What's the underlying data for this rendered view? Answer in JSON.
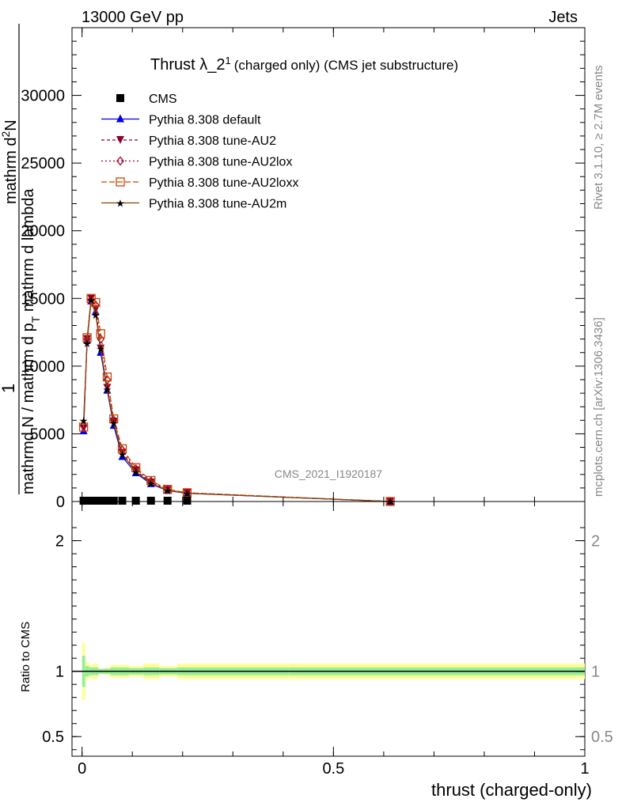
{
  "header": {
    "left": "13000 GeV pp",
    "right": "Jets"
  },
  "side_text": {
    "rivet": "Rivet 3.1.10, ≥ 2.7M events",
    "mcplots": "mcplots.cern.ch [arXiv:1306.3436]"
  },
  "watermark": "CMS_2021_I1920187",
  "title": {
    "main": "Thrust λ_2",
    "sup": "1",
    "rest": "(charged only) (CMS jet substructure)"
  },
  "ylabel": {
    "one": "1",
    "line1": "mathrm dN / mathrm d p_T mathrm d lambda",
    "line2": "mathrm d",
    "sup": "2",
    "line3": "N",
    "numer": "mathrm d",
    "denom": "mathrm N / mathrm d p"
  },
  "ratio_ylabel": "Ratio to CMS",
  "xlabel": "thrust (charged-only)",
  "legend": [
    {
      "label": "CMS",
      "color": "#000000",
      "marker": "square",
      "dash": "none"
    },
    {
      "label": "Pythia 8.308 default",
      "color": "#0000dd",
      "marker": "triangle",
      "dash": "none"
    },
    {
      "label": "Pythia 8.308 tune-AU2",
      "color": "#8b0033",
      "marker": "triangle-down",
      "dash": "4,3"
    },
    {
      "label": "Pythia 8.308 tune-AU2lox",
      "color": "#aa0022",
      "marker": "diamond",
      "dash": "2,3"
    },
    {
      "label": "Pythia 8.308 tune-AU2loxx",
      "color": "#cc4400",
      "marker": "open-square",
      "dash": "7,3"
    },
    {
      "label": "Pythia 8.308 tune-AU2m",
      "color": "#8b4500",
      "marker": "star",
      "dash": "none"
    }
  ],
  "chart_data": {
    "type": "line",
    "xlabel": "thrust (charged-only)",
    "xlim": [
      -0.02,
      1.0
    ],
    "ylim": [
      0,
      35000
    ],
    "ratio_ylim": [
      0.35,
      2.3
    ],
    "x_ticks": [
      0,
      0.5,
      1
    ],
    "x_tick_labels": [
      "0",
      "0.5",
      "1"
    ],
    "y_ticks": [
      0,
      5000,
      10000,
      15000,
      20000,
      25000,
      30000
    ],
    "y_tick_labels": [
      "0",
      "5000",
      "10000",
      "15000",
      "20000",
      "25000",
      "30000"
    ],
    "ratio_ticks": [
      0.5,
      1,
      2
    ],
    "ratio_tick_labels": [
      "0.5",
      "1",
      "2"
    ],
    "cms_x": [
      0.003,
      0.01,
      0.018,
      0.027,
      0.037,
      0.05,
      0.063,
      0.08,
      0.107,
      0.137,
      0.17,
      0.209
    ],
    "series": [
      {
        "name": "Pythia 8.308 default",
        "x": [
          0.003,
          0.01,
          0.018,
          0.027,
          0.037,
          0.05,
          0.063,
          0.08,
          0.107,
          0.137,
          0.17,
          0.209,
          0.613
        ],
        "values": [
          5200,
          11900,
          14800,
          14000,
          11000,
          8200,
          5600,
          3300,
          2100,
          1300,
          800,
          600,
          0
        ]
      },
      {
        "name": "Pythia 8.308 tune-AU2",
        "x": [
          0.003,
          0.01,
          0.018,
          0.027,
          0.037,
          0.05,
          0.063,
          0.08,
          0.107,
          0.137,
          0.17,
          0.209,
          0.613
        ],
        "values": [
          5400,
          12000,
          15000,
          14200,
          11300,
          8400,
          5900,
          3600,
          2300,
          1400,
          850,
          620,
          0
        ]
      },
      {
        "name": "Pythia 8.308 tune-AU2lox",
        "x": [
          0.003,
          0.01,
          0.018,
          0.027,
          0.037,
          0.05,
          0.063,
          0.08,
          0.107,
          0.137,
          0.17,
          0.209,
          0.613
        ],
        "values": [
          5600,
          12000,
          14900,
          14500,
          12000,
          9000,
          6000,
          3800,
          2400,
          1500,
          880,
          640,
          0
        ]
      },
      {
        "name": "Pythia 8.308 tune-AU2loxx",
        "x": [
          0.003,
          0.01,
          0.018,
          0.027,
          0.037,
          0.05,
          0.063,
          0.08,
          0.107,
          0.137,
          0.17,
          0.209,
          0.613
        ],
        "values": [
          5500,
          12100,
          15000,
          14700,
          12400,
          9200,
          6100,
          3900,
          2500,
          1550,
          900,
          650,
          0
        ]
      },
      {
        "name": "Pythia 8.308 tune-AU2m",
        "x": [
          0.003,
          0.01,
          0.018,
          0.027,
          0.037,
          0.05,
          0.063,
          0.08,
          0.107,
          0.137,
          0.17,
          0.209,
          0.613
        ],
        "values": [
          6000,
          11700,
          14900,
          13800,
          11300,
          8300,
          5800,
          3500,
          2200,
          1350,
          820,
          610,
          0
        ]
      }
    ],
    "ratio_bands": {
      "x": [
        0.003,
        0.01,
        0.018,
        0.027,
        0.037,
        0.05,
        0.063,
        0.08,
        0.107,
        0.137,
        0.17,
        0.209,
        0.613
      ],
      "inner_halfwidth": [
        0.12,
        0.04,
        0.03,
        0.03,
        0.02,
        0.02,
        0.03,
        0.03,
        0.025,
        0.03,
        0.025,
        0.03,
        0.03
      ],
      "outer_halfwidth": [
        0.22,
        0.07,
        0.05,
        0.06,
        0.02,
        0.03,
        0.05,
        0.05,
        0.04,
        0.06,
        0.04,
        0.06,
        0.06
      ]
    }
  }
}
